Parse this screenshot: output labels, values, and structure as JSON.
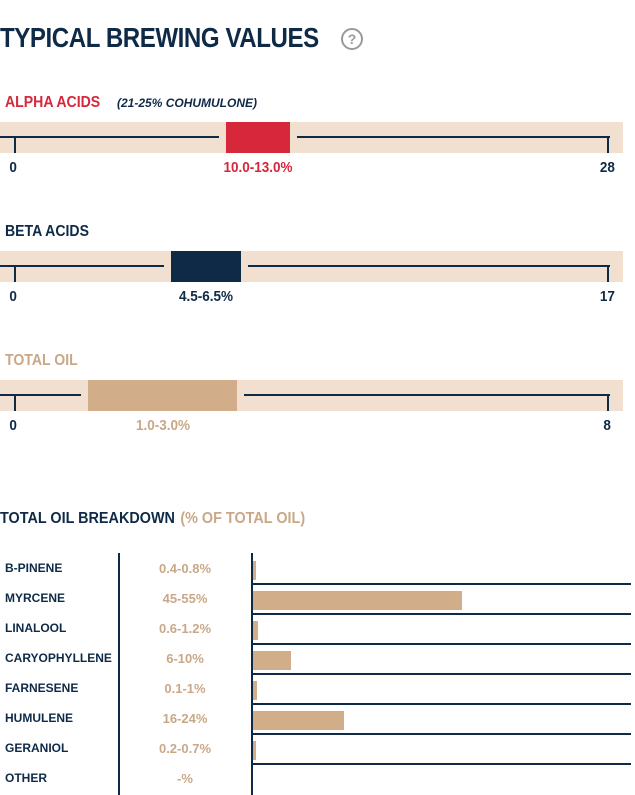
{
  "page": {
    "title": "TYPICAL BREWING VALUES",
    "help_glyph": "?"
  },
  "colors": {
    "navy": "#0e2a47",
    "red": "#d6283a",
    "tan": "#d2ad8a",
    "track": "#f1dfd0"
  },
  "alpha": {
    "label": "ALPHA ACIDS",
    "note": "(21-25% COHUMULONE)",
    "min_label": "0",
    "max_label": "28",
    "range_label": "10.0-13.0%",
    "min": 0,
    "max": 28,
    "low": 10.0,
    "high": 13.0
  },
  "beta": {
    "label": "BETA ACIDS",
    "min_label": "0",
    "max_label": "17",
    "range_label": "4.5-6.5%",
    "min": 0,
    "max": 17,
    "low": 4.5,
    "high": 6.5
  },
  "oil": {
    "label": "TOTAL OIL",
    "min_label": "0",
    "max_label": "8",
    "range_label": "1.0-3.0%",
    "min": 0,
    "max": 8,
    "low": 1.0,
    "high": 3.0
  },
  "breakdown": {
    "title": "TOTAL OIL BREAKDOWN",
    "subtitle": "(% OF TOTAL OIL)",
    "rows": [
      {
        "name": "B-PINENE",
        "value": "0.4-0.8%",
        "percent": 0.8
      },
      {
        "name": "MYRCENE",
        "value": "45-55%",
        "percent": 55
      },
      {
        "name": "LINALOOL",
        "value": "0.6-1.2%",
        "percent": 1.2
      },
      {
        "name": "CARYOPHYLLENE",
        "value": "6-10%",
        "percent": 10
      },
      {
        "name": "FARNESENE",
        "value": "0.1-1%",
        "percent": 1
      },
      {
        "name": "HUMULENE",
        "value": "16-24%",
        "percent": 24
      },
      {
        "name": "GERANIOL",
        "value": "0.2-0.7%",
        "percent": 0.7
      },
      {
        "name": "OTHER",
        "value": "-%",
        "percent": 0
      }
    ]
  }
}
